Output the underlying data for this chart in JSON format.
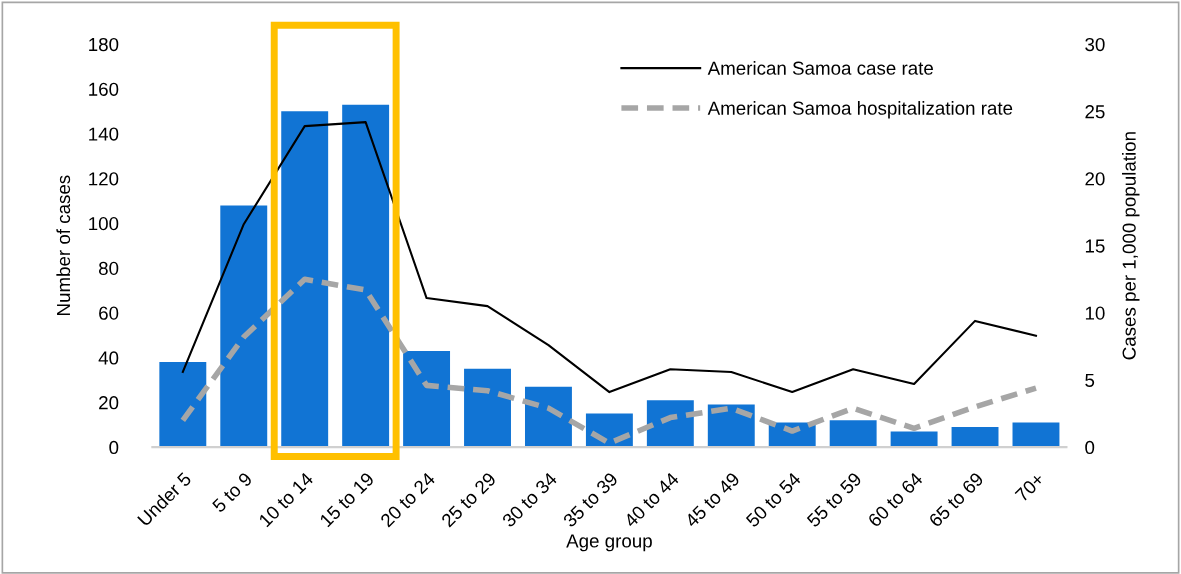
{
  "chart_data": {
    "type": "bar",
    "xlabel": "Age group",
    "ylabel": "Number of cases",
    "y2label": "Cases per 1,000 population",
    "categories": [
      "Under 5",
      "5 to 9",
      "10 to 14",
      "15 to 19",
      "20 to 24",
      "25 to 29",
      "30 to 34",
      "35 to 39",
      "40 to 44",
      "45 to 49",
      "50 to 54",
      "55 to 59",
      "60 to 64",
      "65 to 69",
      "70+"
    ],
    "series": [
      {
        "color": "#1174d4",
        "values": [
          38,
          108,
          150,
          153,
          43,
          35,
          27,
          15,
          21,
          19,
          11,
          12,
          7,
          9,
          11
        ]
      },
      {
        "type": "line",
        "name": "American Samoa case rate",
        "color": "#000000",
        "axis": "y2",
        "line_style": "solid",
        "values": [
          5.6,
          16.6,
          23.9,
          24.2,
          11.1,
          10.5,
          7.6,
          4.1,
          5.8,
          5.6,
          4.1,
          5.8,
          4.7,
          9.4,
          8.3
        ]
      },
      {
        "type": "line",
        "name": "American Samoa hospitalization rate",
        "color": "#a6a6a6",
        "axis": "y2",
        "line_style": "dashed",
        "values": [
          2.0,
          8.2,
          12.5,
          11.7,
          4.6,
          4.2,
          2.9,
          0.3,
          2.2,
          2.9,
          1.2,
          2.9,
          1.4,
          3.0,
          4.4
        ]
      }
    ],
    "ylim": [
      0,
      180
    ],
    "yticks": [
      0,
      20,
      40,
      60,
      80,
      100,
      120,
      140,
      160,
      180
    ],
    "y2lim": [
      0,
      30
    ],
    "y2ticks": [
      0,
      5,
      10,
      15,
      20,
      25,
      30
    ],
    "legend": "top right"
  }
}
